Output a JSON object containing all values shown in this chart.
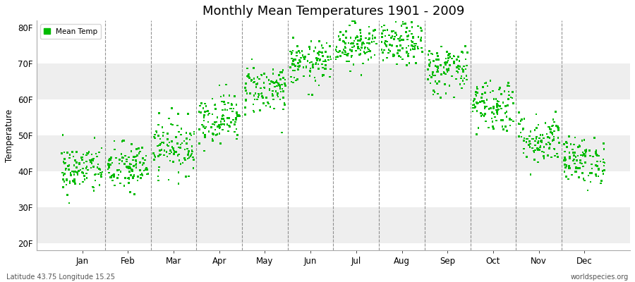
{
  "title": "Monthly Mean Temperatures 1901 - 2009",
  "ylabel": "Temperature",
  "xlabel_labels": [
    "Jan",
    "Feb",
    "Mar",
    "Apr",
    "May",
    "Jun",
    "Jul",
    "Aug",
    "Sep",
    "Oct",
    "Nov",
    "Dec"
  ],
  "ytick_labels": [
    "20F",
    "30F",
    "40F",
    "50F",
    "60F",
    "70F",
    "80F"
  ],
  "ytick_values": [
    20,
    30,
    40,
    50,
    60,
    70,
    80
  ],
  "ylim": [
    18,
    82
  ],
  "xlim": [
    -0.5,
    12.5
  ],
  "footer_left": "Latitude 43.75 Longitude 15.25",
  "footer_right": "worldspecies.org",
  "legend_label": "Mean Temp",
  "marker_color": "#00BB00",
  "bg_color": "#FFFFFF",
  "plot_bg_color": "#FFFFFF",
  "band_color_light": "#EEEEEE",
  "band_color_dark": "#FFFFFF",
  "monthly_means_F": [
    40.5,
    41.0,
    47.0,
    55.0,
    63.0,
    70.0,
    75.5,
    75.5,
    68.5,
    58.5,
    49.0,
    43.0
  ],
  "monthly_std_F": [
    3.5,
    3.5,
    3.8,
    3.5,
    3.5,
    3.0,
    3.0,
    3.0,
    3.5,
    3.8,
    3.5,
    3.2
  ],
  "n_years": 109,
  "seed": 42
}
